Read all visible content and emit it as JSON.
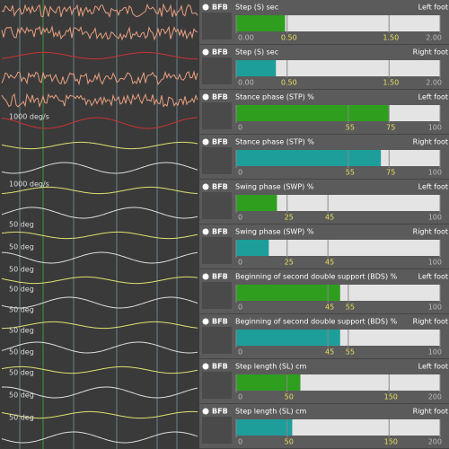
{
  "waveform_panel": {
    "lane_labels": [
      "1000 deg/s",
      "1000 deg/s",
      "50 deg",
      "50 deg",
      "50 deg",
      "50 deg",
      "50 deg",
      "50 deg",
      "50 deg",
      "50 deg",
      "50 deg",
      "50 deg"
    ]
  },
  "rows": [
    {
      "badge": "BFB",
      "label": "Step (S) sec",
      "side": "Left foot",
      "value": 0.48,
      "xlim": [
        0,
        2
      ],
      "color": "#2f9e1f",
      "ticks": [
        {
          "value": 0,
          "label": "0.00"
        },
        {
          "value": 0.5,
          "label": "0.50"
        },
        {
          "value": 1.5,
          "label": "1.50"
        },
        {
          "value": 2,
          "label": "2.00"
        }
      ]
    },
    {
      "badge": "BFB",
      "label": "Step (S) sec",
      "side": "Right foot",
      "value": 0.39,
      "xlim": [
        0,
        2
      ],
      "color": "#1d9e9a",
      "ticks": [
        {
          "value": 0,
          "label": "0.00"
        },
        {
          "value": 0.5,
          "label": "0.50"
        },
        {
          "value": 1.5,
          "label": "1.50"
        },
        {
          "value": 2,
          "label": "2.00"
        }
      ]
    },
    {
      "badge": "BFB",
      "label": "Stance phase (STP) %",
      "side": "Left foot",
      "value": 75,
      "xlim": [
        0,
        100
      ],
      "color": "#2f9e1f",
      "ticks": [
        0,
        55,
        75,
        100
      ]
    },
    {
      "badge": "BFB",
      "label": "Stance phase (STP) %",
      "side": "Right foot",
      "value": 71,
      "xlim": [
        0,
        100
      ],
      "color": "#1d9e9a",
      "ticks": [
        0,
        55,
        75,
        100
      ]
    },
    {
      "badge": "BFB",
      "label": "Swing phase (SWP) %",
      "side": "Left foot",
      "value": 20,
      "xlim": [
        0,
        100
      ],
      "color": "#2f9e1f",
      "ticks": [
        0,
        25,
        45,
        100
      ]
    },
    {
      "badge": "BFB",
      "label": "Swing phase (SWP) %",
      "side": "Right foot",
      "value": 16,
      "xlim": [
        0,
        100
      ],
      "color": "#1d9e9a",
      "ticks": [
        0,
        25,
        45,
        100
      ]
    },
    {
      "badge": "BFB",
      "label": "Beginning of second double support (BDS) %",
      "side": "Left foot",
      "value": 51,
      "xlim": [
        0,
        100
      ],
      "color": "#2f9e1f",
      "ticks": [
        0,
        45,
        55,
        100
      ]
    },
    {
      "badge": "BFB",
      "label": "Beginning of second double support (BDS) %",
      "side": "Right foot",
      "value": 51,
      "xlim": [
        0,
        100
      ],
      "color": "#1d9e9a",
      "ticks": [
        0,
        45,
        55,
        100
      ]
    },
    {
      "badge": "BFB",
      "label": "Step length (SL) cm",
      "side": "Left foot",
      "value": 63,
      "xlim": [
        0,
        200
      ],
      "color": "#2f9e1f",
      "ticks": [
        0,
        50,
        150,
        200
      ]
    },
    {
      "badge": "BFB",
      "label": "Step length (SL) cm",
      "side": "Right foot",
      "value": 55,
      "xlim": [
        0,
        200
      ],
      "color": "#1d9e9a",
      "ticks": [
        0,
        50,
        150,
        200
      ]
    }
  ]
}
